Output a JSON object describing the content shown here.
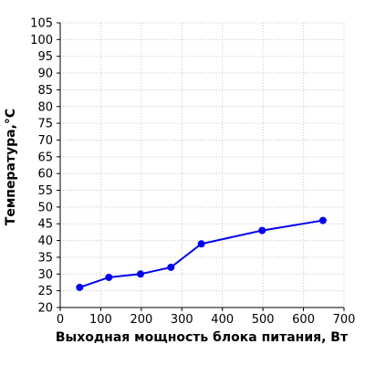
{
  "chart_data": {
    "type": "line",
    "xlabel": "Выходная мощность блока питания, Вт",
    "ylabel": "Температура,°С",
    "xlim": [
      0,
      700
    ],
    "ylim": [
      20,
      105
    ],
    "x_ticks": [
      0,
      100,
      200,
      300,
      400,
      500,
      600,
      700
    ],
    "y_ticks": [
      20,
      25,
      30,
      35,
      40,
      45,
      50,
      55,
      60,
      65,
      70,
      75,
      80,
      85,
      90,
      95,
      100,
      105
    ],
    "grid": true,
    "series": [
      {
        "color": "#0000ee",
        "x": [
          48,
          120,
          198,
          273,
          348,
          498,
          648
        ],
        "y": [
          26,
          29,
          30,
          32,
          39,
          43,
          46
        ]
      }
    ]
  }
}
